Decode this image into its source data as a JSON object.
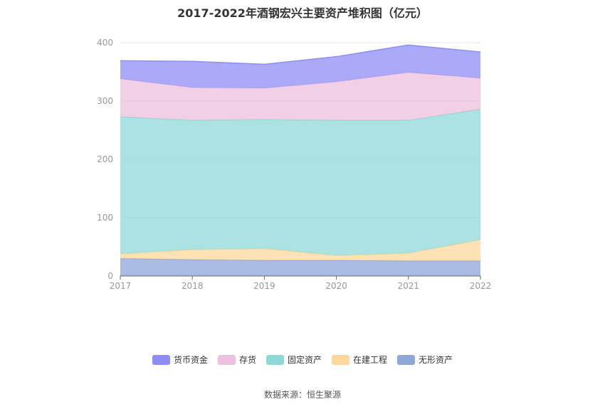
{
  "chart_data": {
    "type": "area",
    "stacked": true,
    "title": "2017-2022年酒钢宏兴主要资产堆积图（亿元）",
    "categories": [
      "2017",
      "2018",
      "2019",
      "2020",
      "2021",
      "2022"
    ],
    "ylim": [
      0,
      400
    ],
    "yticks": [
      "0",
      "100",
      "200",
      "300",
      "400"
    ],
    "grid": true,
    "legend_position": "bottom",
    "series": [
      {
        "name": "无形资产",
        "color": "#8fa6d9",
        "values": [
          30,
          28,
          27,
          27,
          26,
          26
        ]
      },
      {
        "name": "在建工程",
        "color": "#fdd89a",
        "values": [
          8,
          17,
          20,
          8,
          13,
          36
        ]
      },
      {
        "name": "固定资产",
        "color": "#8fd8d8",
        "values": [
          235,
          222,
          221,
          232,
          228,
          224
        ]
      },
      {
        "name": "存货",
        "color": "#ecc0de",
        "values": [
          65,
          56,
          54,
          66,
          82,
          53
        ]
      },
      {
        "name": "货币资金",
        "color": "#8d8df5",
        "values": [
          31,
          45,
          41,
          43,
          47,
          45
        ]
      }
    ],
    "legend_order": [
      "货币资金",
      "存货",
      "固定资产",
      "在建工程",
      "无形资产"
    ]
  },
  "source_text": "数据来源：恒生聚源"
}
